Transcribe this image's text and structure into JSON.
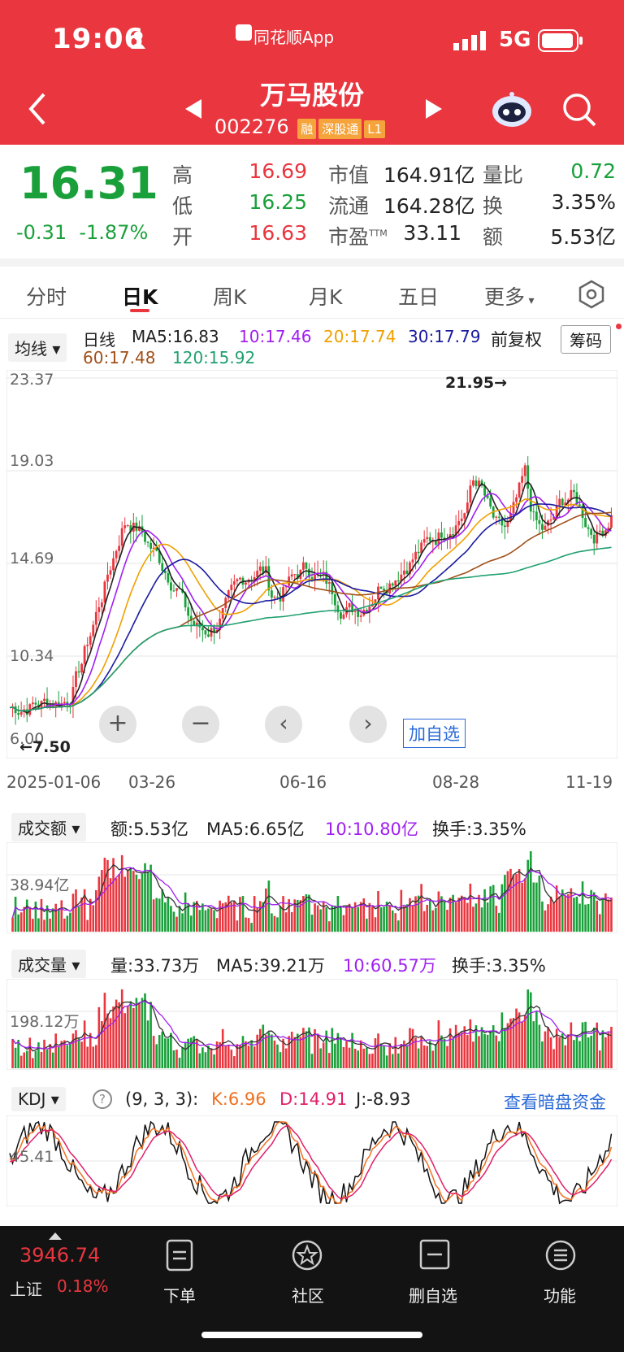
{
  "status_bar": {
    "time": "19:06",
    "app": "同花顺App",
    "network": "5G"
  },
  "header": {
    "title": "万马股份",
    "code": "002276",
    "tags": [
      "融",
      "深股通",
      "L1"
    ]
  },
  "quote": {
    "price": "16.31",
    "change": "-0.31",
    "change_pct": "-1.87%",
    "rows": [
      {
        "l1": "高",
        "v1": "16.69",
        "l2": "市值",
        "v2": "164.91亿",
        "l3": "量比",
        "v3": "0.72"
      },
      {
        "l1": "低",
        "v1": "16.25",
        "l2": "流通",
        "v2": "164.28亿",
        "l3": "换",
        "v3": "3.35%"
      },
      {
        "l1": "开",
        "v1": "16.63",
        "l2": "市盈",
        "v2": "33.11",
        "l3": "额",
        "v3": "5.53亿"
      }
    ],
    "pe_sup": "TTM"
  },
  "tabs": [
    "分时",
    "日K",
    "周K",
    "月K",
    "五日",
    "更多"
  ],
  "ma_bar": {
    "mode": "均线",
    "period": "日线",
    "ma5": "MA5:16.83",
    "ma10": "10:17.46",
    "ma20": "20:17.74",
    "ma30": "30:17.79",
    "adjust": "前复权",
    "chip": "筹码",
    "ma60": "60:17.48",
    "ma120": "120:15.92"
  },
  "kline": {
    "y_ticks": [
      "23.37",
      "19.03",
      "14.69",
      "10.34",
      "6.00"
    ],
    "x_ticks": [
      "2025-01-06",
      "03-26",
      "06-16",
      "08-28",
      "11-19"
    ],
    "high_label": "21.95→",
    "low_label": "←7.50",
    "add_watch": "加自选",
    "colors": {
      "up": "#e9363f",
      "down": "#1aa03a",
      "ma5": "#222222",
      "ma10": "#a020f0",
      "ma20": "#f0a000",
      "ma30": "#1a1aa0",
      "ma60": "#a0501a",
      "ma120": "#20a070"
    }
  },
  "amount": {
    "label": "成交额",
    "val": "额:5.53亿",
    "ma5": "MA5:6.65亿",
    "ma10": "10:10.80亿",
    "turn": "换手:3.35%",
    "tick": "38.94亿"
  },
  "volume": {
    "label": "成交量",
    "val": "量:33.73万",
    "ma5": "MA5:39.21万",
    "ma10": "10:60.57万",
    "turn": "换手:3.35%",
    "tick": "198.12万"
  },
  "kdj": {
    "label": "KDJ",
    "params": "(9, 3, 3):",
    "k": "K:6.96",
    "d": "D:14.91",
    "j": "J:-8.93",
    "link": "查看暗盘资金",
    "tick": "45.41"
  },
  "bottom": {
    "index_value": "3946.74",
    "index_name": "上证",
    "index_pct": "0.18%",
    "items": [
      "下单",
      "社区",
      "删自选",
      "功能"
    ]
  }
}
